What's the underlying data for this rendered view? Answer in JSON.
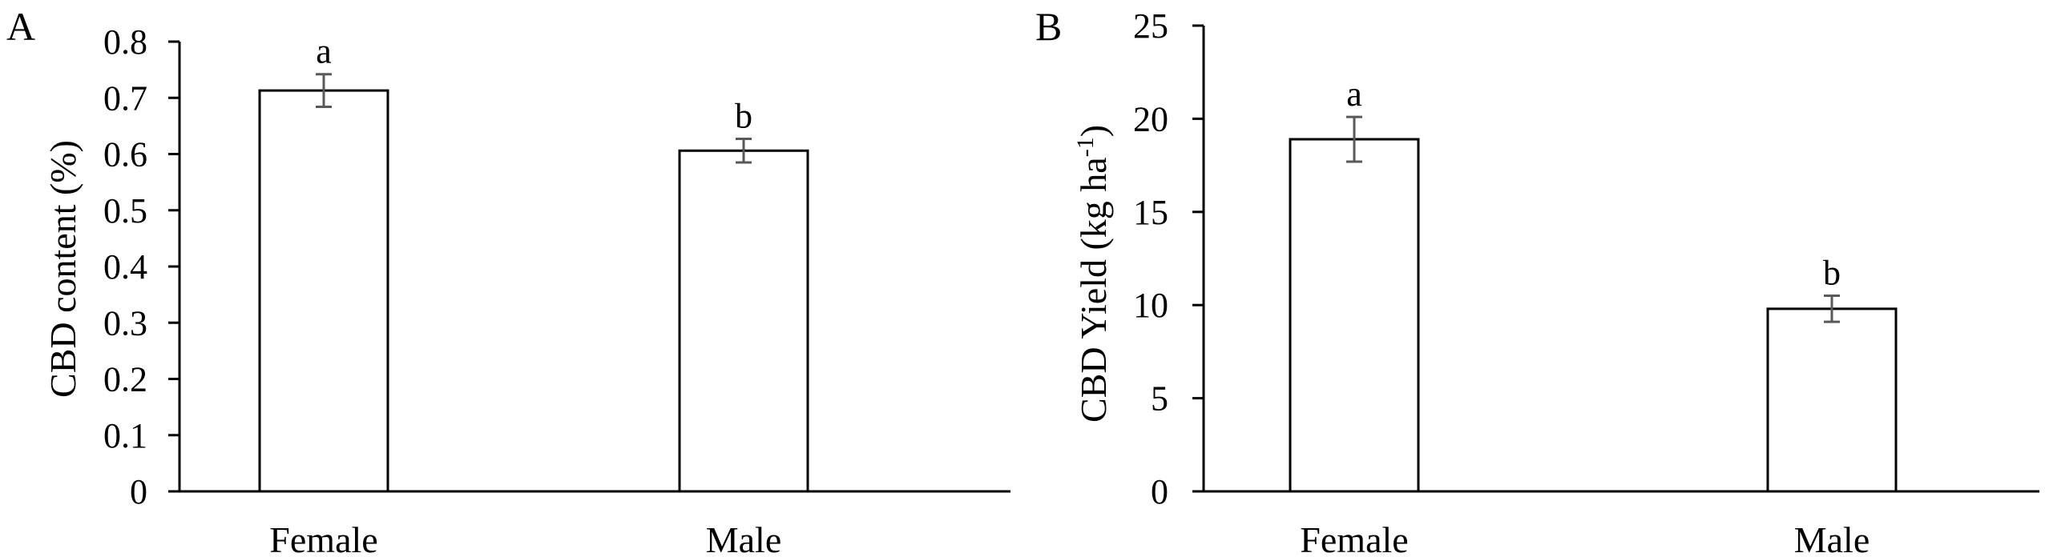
{
  "chart_data": [
    {
      "type": "bar",
      "panel_label": "A",
      "title": "",
      "xlabel": "",
      "ylabel": "CBD content (%)",
      "categories": [
        "Female",
        "Male"
      ],
      "values": [
        0.713,
        0.606
      ],
      "errors": [
        0.029,
        0.021
      ],
      "significance": [
        "a",
        "b"
      ],
      "ylim": [
        0,
        0.8
      ],
      "yticks": [
        0,
        0.1,
        0.2,
        0.3,
        0.4,
        0.5,
        0.6,
        0.7,
        0.8
      ],
      "ytick_labels": [
        "0",
        "0.1",
        "0.2",
        "0.3",
        "0.4",
        "0.5",
        "0.6",
        "0.7",
        "0.8"
      ],
      "grid": false,
      "bar_fill": "#ffffff",
      "bar_stroke": "#000000",
      "error_color": "#595959"
    },
    {
      "type": "bar",
      "panel_label": "B",
      "title": "",
      "xlabel": "",
      "ylabel_main": "CBD Yield (kg ha",
      "ylabel_sup": "-1",
      "ylabel_end": ")",
      "categories": [
        "Female",
        "Male"
      ],
      "values": [
        18.9,
        9.8
      ],
      "errors": [
        1.2,
        0.7
      ],
      "significance": [
        "a",
        "b"
      ],
      "ylim": [
        0,
        25
      ],
      "yticks": [
        0,
        5,
        10,
        15,
        20,
        25
      ],
      "ytick_labels": [
        "0",
        "5",
        "10",
        "15",
        "20",
        "25"
      ],
      "grid": false,
      "bar_fill": "#ffffff",
      "bar_stroke": "#000000",
      "error_color": "#595959"
    }
  ]
}
